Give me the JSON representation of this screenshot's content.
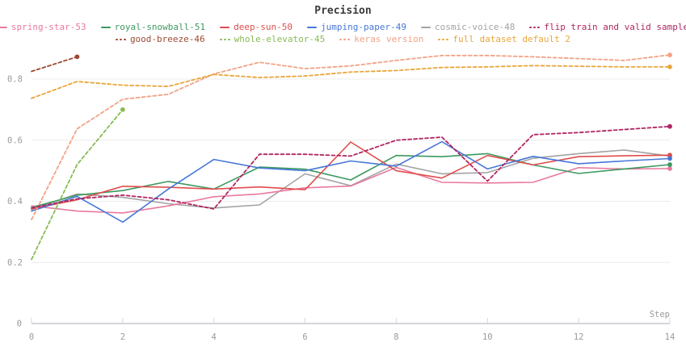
{
  "title": "Precision",
  "axes": {
    "x_label": "Step",
    "x_ticks": [
      0,
      2,
      4,
      6,
      8,
      10,
      12,
      14
    ],
    "y_ticks": [
      0.2,
      0.4,
      0.6,
      0.8
    ],
    "y_origin_label": "0"
  },
  "legend": {
    "rows": [
      [
        0,
        1,
        2,
        3,
        4,
        5
      ],
      [
        6,
        7,
        8,
        9
      ]
    ]
  },
  "colors": {
    "background": "#ffffff",
    "title_text": "#3b3b3b",
    "grid_line": "#ececec",
    "axis_line": "#d5d5dc",
    "tick_label": "#9b9b9b"
  },
  "chart_data": {
    "type": "line",
    "title": "Precision",
    "xlabel": "Step",
    "ylabel": "",
    "xlim": [
      0,
      14
    ],
    "ylim": [
      0,
      0.9
    ],
    "grid": "horizontal",
    "legend_position": "top",
    "x": [
      0,
      1,
      2,
      3,
      4,
      5,
      6,
      7,
      8,
      9,
      10,
      11,
      12,
      13,
      14
    ],
    "series": [
      {
        "name": "spring-star-53",
        "color": "#e8799f",
        "style": "solid",
        "values": [
          0.385,
          0.368,
          0.362,
          0.385,
          0.415,
          0.424,
          0.444,
          0.45,
          0.511,
          0.462,
          0.46,
          0.462,
          0.51,
          0.506,
          0.507
        ]
      },
      {
        "name": "royal-snowball-51",
        "color": "#3d9960",
        "style": "solid",
        "values": [
          0.38,
          0.42,
          0.435,
          0.465,
          0.44,
          0.512,
          0.505,
          0.47,
          0.55,
          0.546,
          0.556,
          0.519,
          0.491,
          0.506,
          0.52
        ]
      },
      {
        "name": "deep-sun-50",
        "color": "#e04c4c",
        "style": "solid",
        "values": [
          0.375,
          0.405,
          0.449,
          0.446,
          0.44,
          0.447,
          0.438,
          0.594,
          0.5,
          0.476,
          0.55,
          0.519,
          0.546,
          0.549,
          0.551
        ]
      },
      {
        "name": "jumping-paper-49",
        "color": "#4678d8",
        "style": "solid",
        "values": [
          0.368,
          0.416,
          0.332,
          0.44,
          0.537,
          0.509,
          0.5,
          0.532,
          0.515,
          0.595,
          0.506,
          0.547,
          0.523,
          0.532,
          0.54
        ]
      },
      {
        "name": "cosmic-voice-48",
        "color": "#a3a3a3",
        "style": "solid",
        "values": [
          0.373,
          0.424,
          0.413,
          0.392,
          0.378,
          0.388,
          0.49,
          0.451,
          0.522,
          0.49,
          0.494,
          0.541,
          0.556,
          0.568,
          0.548
        ]
      },
      {
        "name": "flip train and valid sample",
        "color": "#b02663",
        "style": "dashed",
        "values": [
          0.378,
          0.408,
          0.42,
          0.405,
          0.375,
          0.554,
          0.554,
          0.548,
          0.6,
          0.61,
          0.466,
          0.618,
          0.625,
          0.635,
          0.645
        ]
      },
      {
        "name": "good-breeze-46",
        "color": "#9c4a32",
        "style": "dashed",
        "x": [
          0,
          1
        ],
        "values": [
          0.825,
          0.873
        ]
      },
      {
        "name": "whole-elevator-45",
        "color": "#87bb55",
        "style": "dashed",
        "x": [
          0,
          1,
          2
        ],
        "values": [
          0.21,
          0.52,
          0.7
        ]
      },
      {
        "name": "keras version",
        "color": "#f2a285",
        "style": "dashed",
        "values": [
          0.34,
          0.637,
          0.734,
          0.75,
          0.817,
          0.855,
          0.834,
          0.843,
          0.861,
          0.877,
          0.877,
          0.873,
          0.867,
          0.861,
          0.879
        ]
      },
      {
        "name": "full dataset default 2",
        "color": "#e9a63b",
        "style": "dashed",
        "values": [
          0.737,
          0.792,
          0.78,
          0.776,
          0.815,
          0.805,
          0.81,
          0.823,
          0.828,
          0.838,
          0.84,
          0.844,
          0.842,
          0.84,
          0.84
        ]
      }
    ]
  }
}
